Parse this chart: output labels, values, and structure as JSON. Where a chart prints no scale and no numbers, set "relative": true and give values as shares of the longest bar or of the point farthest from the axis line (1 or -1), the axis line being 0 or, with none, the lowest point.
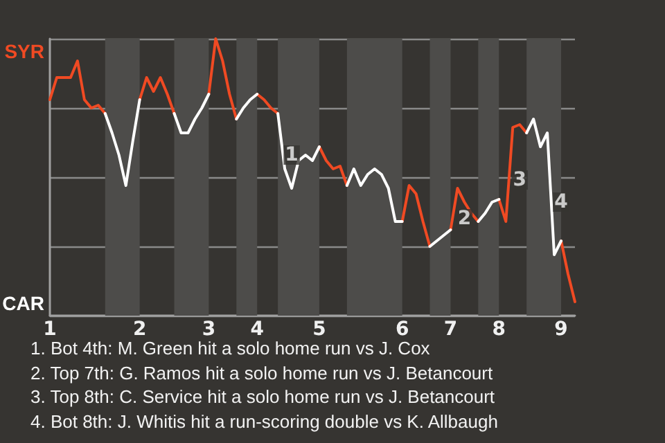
{
  "chart_data": {
    "type": "line",
    "categories": [
      "1",
      null,
      null,
      null,
      null,
      null,
      null,
      null,
      null,
      null,
      null,
      null,
      null,
      "2",
      null,
      null,
      null,
      null,
      null,
      null,
      null,
      null,
      null,
      "3",
      null,
      null,
      null,
      null,
      null,
      null,
      "4",
      null,
      null,
      null,
      null,
      null,
      null,
      null,
      null,
      "5",
      null,
      null,
      null,
      null,
      null,
      null,
      null,
      null,
      null,
      null,
      null,
      "6",
      null,
      null,
      null,
      null,
      null,
      null,
      "7",
      null,
      null,
      null,
      null,
      null,
      null,
      "8",
      null,
      null,
      null,
      null,
      null,
      null,
      null,
      null,
      "9",
      null,
      null
    ],
    "series": [
      {
        "name": "SYR",
        "color": "#f04a23",
        "values": [
          0.78,
          0.86,
          0.86,
          0.86,
          0.92,
          0.78,
          0.75,
          0.76,
          0.73,
          null,
          null,
          null,
          null,
          0.78,
          0.86,
          0.81,
          0.86,
          0.8,
          0.73,
          null,
          null,
          null,
          null,
          0.8,
          1,
          0.92,
          0.8,
          0.71,
          null,
          null,
          0.8,
          0.78,
          0.75,
          0.73,
          null,
          null,
          null,
          null,
          null,
          0.61,
          0.56,
          0.53,
          0.54,
          0.47,
          null,
          null,
          null,
          null,
          null,
          null,
          null,
          0.34,
          0.47,
          0.44,
          0.34,
          0.25,
          null,
          null,
          0.31,
          0.46,
          0.41,
          0.37,
          0.34,
          null,
          null,
          0.42,
          0.34,
          0.68,
          0.69,
          0.66,
          null,
          null,
          null,
          null,
          0.27,
          0.15,
          0.05
        ]
      },
      {
        "name": "CAR",
        "color": "#ffffff",
        "values": [
          null,
          null,
          null,
          null,
          null,
          null,
          null,
          null,
          0.73,
          0.66,
          0.58,
          0.47,
          0.63,
          0.78,
          null,
          null,
          null,
          null,
          0.73,
          0.66,
          0.66,
          0.71,
          0.75,
          0.8,
          null,
          null,
          null,
          0.71,
          0.75,
          0.78,
          0.8,
          null,
          null,
          0.73,
          0.53,
          0.46,
          0.56,
          0.58,
          0.56,
          0.61,
          null,
          null,
          null,
          0.47,
          0.53,
          0.47,
          0.51,
          0.53,
          0.51,
          0.46,
          0.34,
          0.34,
          null,
          null,
          null,
          0.25,
          0.27,
          0.29,
          0.31,
          null,
          null,
          null,
          0.34,
          0.37,
          0.41,
          0.42,
          null,
          null,
          null,
          0.66,
          0.71,
          0.61,
          0.66,
          0.22,
          0.27,
          null,
          null
        ]
      }
    ],
    "relative": true,
    "grid": "y",
    "legend": "left",
    "marker": "none",
    "annotations": [
      {
        "text": "1",
        "y": 0.58
      },
      {
        "text": "2",
        "y": 0.35
      },
      {
        "text": "3",
        "y": 0.49
      },
      {
        "text": "4",
        "y": 0.41
      },
      "1. Bot 4th: M. Green hit a solo home run vs J. Cox",
      "2. Top 7th: G. Ramos hit a solo home run vs J. Betancourt",
      "3. Top 8th: C. Service hit a solo home run vs J. Betancourt",
      "4. Bot 8th: J. Whitis hit a run-scoring double vs K. Allbaugh"
    ]
  }
}
